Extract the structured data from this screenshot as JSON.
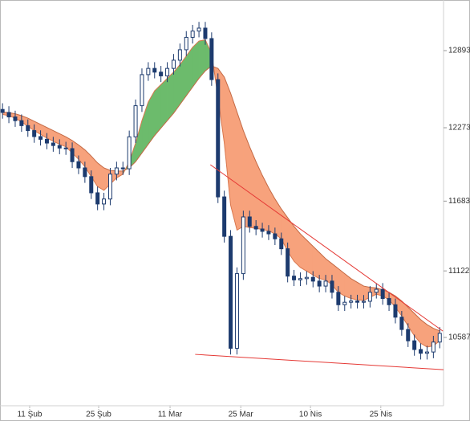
{
  "chart_data": {
    "type": "candlestick",
    "xlim": [
      -0.4,
      69.6
    ],
    "xticks": [
      {
        "value": 4.28,
        "label": "11 Şub"
      },
      {
        "value": 15.17,
        "label": "25 Şub"
      },
      {
        "value": 26.44,
        "label": "11 Mar"
      },
      {
        "value": 37.6,
        "label": "25 Mar"
      },
      {
        "value": 48.6,
        "label": "10 Nis"
      },
      {
        "value": 59.7,
        "label": "25 Nis"
      }
    ],
    "ylim": [
      10038,
      13300
    ],
    "yticks": [
      10587,
      11122,
      11683,
      12273,
      12893
    ],
    "candle_color": "#1d3b6e",
    "open": [
      12420,
      12396,
      12360,
      12330,
      12290,
      12250,
      12202,
      12180,
      12150,
      12130,
      12110,
      12105,
      12000,
      11950,
      11880,
      11750,
      11660,
      11700,
      11900,
      11950,
      11943,
      12200,
      12450,
      12700,
      12750,
      12720,
      12690,
      12750,
      12816,
      12900,
      13000,
      13050,
      13074,
      12990,
      12660,
      11717,
      11400,
      10500,
      11100,
      11556,
      11480,
      11459,
      11440,
      11420,
      11380,
      11300,
      11080,
      11050,
      11060,
      11070,
      11040,
      11000,
      11040,
      10950,
      10850,
      10870,
      10880,
      10870,
      10878,
      10950,
      10974,
      10900,
      10850,
      10750,
      10651,
      10560,
      10490,
      10460,
      10470,
      10550
    ],
    "high": [
      12470,
      12446,
      12410,
      12380,
      12340,
      12300,
      12252,
      12230,
      12200,
      12180,
      12160,
      12155,
      12050,
      12000,
      11930,
      11800,
      11750,
      11950,
      12000,
      12000,
      12250,
      12500,
      12750,
      12800,
      12800,
      12770,
      12800,
      12866,
      12950,
      13050,
      13100,
      13124,
      13124,
      13040,
      12710,
      11767,
      11450,
      11150,
      11606,
      11606,
      11530,
      11509,
      11490,
      11470,
      11430,
      11350,
      11130,
      11110,
      11120,
      11120,
      11090,
      11090,
      11090,
      11000,
      10920,
      10930,
      10930,
      10928,
      11000,
      11024,
      11024,
      10950,
      10900,
      10800,
      10701,
      10610,
      10540,
      10520,
      10600,
      10670
    ],
    "low": [
      12346,
      12310,
      12280,
      12240,
      12200,
      12152,
      12130,
      12100,
      12080,
      12060,
      12055,
      11950,
      11900,
      11830,
      11700,
      11610,
      11610,
      11650,
      11850,
      11893,
      11893,
      12150,
      12400,
      12650,
      12670,
      12640,
      12640,
      12700,
      12766,
      12850,
      12950,
      13000,
      12940,
      12610,
      11667,
      11350,
      10450,
      10450,
      11050,
      11430,
      11409,
      11390,
      11370,
      11330,
      11250,
      11030,
      11000,
      11000,
      11010,
      10990,
      10950,
      10950,
      10900,
      10800,
      10800,
      10820,
      10820,
      10820,
      10828,
      10900,
      10850,
      10800,
      10700,
      10601,
      10510,
      10440,
      10410,
      10410,
      10420,
      10500
    ],
    "close": [
      12396,
      12360,
      12330,
      12290,
      12250,
      12202,
      12180,
      12150,
      12130,
      12110,
      12105,
      12000,
      11950,
      11880,
      11750,
      11660,
      11700,
      11900,
      11950,
      11943,
      12200,
      12450,
      12700,
      12750,
      12720,
      12690,
      12750,
      12816,
      12900,
      13000,
      13050,
      13074,
      12990,
      12660,
      11717,
      11400,
      10500,
      11100,
      11556,
      11480,
      11459,
      11440,
      11420,
      11380,
      11300,
      11080,
      11050,
      11060,
      11070,
      11040,
      11000,
      11040,
      10950,
      10850,
      10870,
      10880,
      10870,
      10878,
      10950,
      10974,
      10900,
      10850,
      10750,
      10651,
      10560,
      10490,
      10460,
      10470,
      10550,
      10620
    ],
    "fast": {
      "color": "#d9784f",
      "values": [
        12380,
        12370,
        12350,
        12320,
        12285,
        12250,
        12220,
        12190,
        12165,
        12140,
        12120,
        12070,
        12020,
        11960,
        11880,
        11800,
        11770,
        11820,
        11870,
        11900,
        12000,
        12150,
        12330,
        12480,
        12570,
        12620,
        12670,
        12720,
        12780,
        12850,
        12920,
        12970,
        12980,
        12870,
        12520,
        12150,
        11650,
        11450,
        11480,
        11470,
        11465,
        11455,
        11445,
        11420,
        11380,
        11280,
        11200,
        11150,
        11120,
        11090,
        11060,
        11050,
        11010,
        10950,
        10920,
        10900,
        10890,
        10885,
        10910,
        10935,
        10920,
        10890,
        10830,
        10760,
        10680,
        10600,
        10540,
        10510,
        10520,
        10560
      ]
    },
    "slow": {
      "color": "#c46a45",
      "values": [
        12400,
        12395,
        12385,
        12370,
        12350,
        12325,
        12300,
        12275,
        12250,
        12225,
        12200,
        12170,
        12135,
        12095,
        12045,
        11990,
        11950,
        11930,
        11925,
        11925,
        11950,
        12000,
        12070,
        12140,
        12210,
        12270,
        12330,
        12390,
        12460,
        12530,
        12600,
        12670,
        12730,
        12770,
        12750,
        12680,
        12550,
        12400,
        12250,
        12120,
        12000,
        11890,
        11790,
        11700,
        11620,
        11550,
        11480,
        11420,
        11370,
        11320,
        11270,
        11220,
        11180,
        11140,
        11100,
        11060,
        11030,
        11000,
        10990,
        10985,
        10970,
        10950,
        10920,
        10880,
        10830,
        10780,
        10730,
        10690,
        10660,
        10640
      ]
    },
    "cloud_up_color": "#6cbb6c",
    "cloud_down_color": "#f7a27c",
    "trendlines": [
      {
        "color": "#e53935",
        "x": [
          32.8,
          69.5
        ],
        "values": [
          11976,
          10638
        ]
      },
      {
        "color": "#e53935",
        "x": [
          30.4,
          69.6
        ],
        "values": [
          10451,
          10328
        ]
      }
    ]
  }
}
